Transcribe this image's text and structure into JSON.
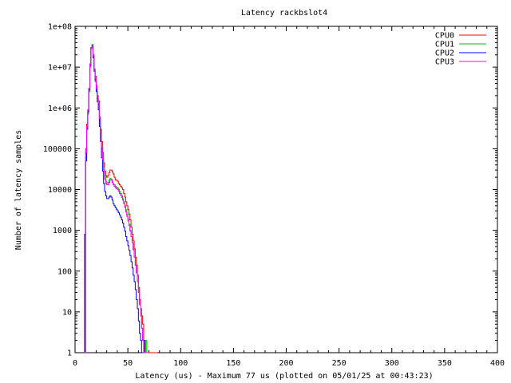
{
  "chart_data": {
    "type": "line",
    "title": "Latency rackbslot4",
    "xlabel": "Latency (us) - Maximum 77 us (plotted on 05/01/25 at 00:43:23)",
    "ylabel": "Number of latency samples",
    "xlim": [
      0,
      400
    ],
    "ylim": [
      1,
      100000000
    ],
    "yscale": "log",
    "x_ticks": [
      0,
      50,
      100,
      150,
      200,
      250,
      300,
      350,
      400
    ],
    "y_ticks": [
      1,
      10,
      100,
      1000,
      10000,
      100000,
      1000000,
      10000000,
      100000000
    ],
    "x_tick_labels": [
      "0",
      "50",
      "100",
      "150",
      "200",
      "250",
      "300",
      "350",
      "400"
    ],
    "y_tick_labels": [
      "1",
      "10",
      "100",
      "1000",
      "10000",
      "100000",
      "1e+06",
      "1e+07",
      "1e+08"
    ],
    "grid": false,
    "legend_position": "top-right",
    "series": [
      {
        "name": "CPU0",
        "color": "#ff0000",
        "points": [
          [
            9,
            1
          ],
          [
            10,
            100000
          ],
          [
            11,
            400000
          ],
          [
            12,
            900000
          ],
          [
            13,
            3000000
          ],
          [
            14,
            12000000
          ],
          [
            15,
            30000000
          ],
          [
            16,
            32000000
          ],
          [
            17,
            20000000
          ],
          [
            18,
            9000000
          ],
          [
            19,
            6000000
          ],
          [
            20,
            3500000
          ],
          [
            21,
            2000000
          ],
          [
            22,
            1500000
          ],
          [
            23,
            600000
          ],
          [
            24,
            300000
          ],
          [
            25,
            150000
          ],
          [
            26,
            80000
          ],
          [
            27,
            45000
          ],
          [
            28,
            28000
          ],
          [
            29,
            22000
          ],
          [
            30,
            20000
          ],
          [
            31,
            22000
          ],
          [
            32,
            26000
          ],
          [
            33,
            30000
          ],
          [
            34,
            30000
          ],
          [
            35,
            27000
          ],
          [
            36,
            24000
          ],
          [
            37,
            20000
          ],
          [
            38,
            17000
          ],
          [
            39,
            17000
          ],
          [
            40,
            16000
          ],
          [
            41,
            14000
          ],
          [
            42,
            13000
          ],
          [
            43,
            12000
          ],
          [
            44,
            11000
          ],
          [
            45,
            10000
          ],
          [
            46,
            8000
          ],
          [
            47,
            6500
          ],
          [
            48,
            5000
          ],
          [
            49,
            4000
          ],
          [
            50,
            3200
          ],
          [
            51,
            2500
          ],
          [
            52,
            1800
          ],
          [
            53,
            1200
          ],
          [
            54,
            800
          ],
          [
            55,
            550
          ],
          [
            56,
            350
          ],
          [
            57,
            220
          ],
          [
            58,
            140
          ],
          [
            59,
            80
          ],
          [
            60,
            40
          ],
          [
            61,
            20
          ],
          [
            62,
            12
          ],
          [
            63,
            8
          ],
          [
            64,
            5
          ],
          [
            65,
            2
          ],
          [
            66,
            1
          ],
          [
            67,
            1
          ],
          [
            70,
            1
          ],
          [
            77,
            1
          ]
        ]
      },
      {
        "name": "CPU1",
        "color": "#00c000",
        "points": [
          [
            9,
            1
          ],
          [
            10,
            60000
          ],
          [
            11,
            300000
          ],
          [
            12,
            700000
          ],
          [
            13,
            2500000
          ],
          [
            14,
            10000000
          ],
          [
            15,
            28000000
          ],
          [
            16,
            36000000
          ],
          [
            17,
            18000000
          ],
          [
            18,
            8000000
          ],
          [
            19,
            5000000
          ],
          [
            20,
            3000000
          ],
          [
            21,
            1700000
          ],
          [
            22,
            1200000
          ],
          [
            23,
            500000
          ],
          [
            24,
            250000
          ],
          [
            25,
            120000
          ],
          [
            26,
            60000
          ],
          [
            27,
            35000
          ],
          [
            28,
            22000
          ],
          [
            29,
            16000
          ],
          [
            30,
            14000
          ],
          [
            31,
            15000
          ],
          [
            32,
            17000
          ],
          [
            33,
            19000
          ],
          [
            34,
            18000
          ],
          [
            35,
            16000
          ],
          [
            36,
            14000
          ],
          [
            37,
            13000
          ],
          [
            38,
            12000
          ],
          [
            39,
            11500
          ],
          [
            40,
            11000
          ],
          [
            41,
            10000
          ],
          [
            42,
            9000
          ],
          [
            43,
            8000
          ],
          [
            44,
            7000
          ],
          [
            45,
            6000
          ],
          [
            46,
            5000
          ],
          [
            47,
            4000
          ],
          [
            48,
            3200
          ],
          [
            49,
            2500
          ],
          [
            50,
            1900
          ],
          [
            51,
            1400
          ],
          [
            52,
            1000
          ],
          [
            53,
            700
          ],
          [
            54,
            500
          ],
          [
            55,
            330
          ],
          [
            56,
            220
          ],
          [
            57,
            140
          ],
          [
            58,
            90
          ],
          [
            59,
            55
          ],
          [
            60,
            30
          ],
          [
            61,
            15
          ],
          [
            62,
            8
          ],
          [
            63,
            4
          ],
          [
            64,
            2
          ],
          [
            65,
            2
          ],
          [
            66,
            1
          ],
          [
            67,
            2
          ],
          [
            68,
            1
          ]
        ]
      },
      {
        "name": "CPU2",
        "color": "#0000ff",
        "points": [
          [
            9,
            800
          ],
          [
            10,
            50000
          ],
          [
            11,
            300000
          ],
          [
            12,
            800000
          ],
          [
            13,
            2800000
          ],
          [
            14,
            11000000
          ],
          [
            15,
            30000000
          ],
          [
            16,
            33000000
          ],
          [
            17,
            17000000
          ],
          [
            18,
            8000000
          ],
          [
            19,
            4500000
          ],
          [
            20,
            2500000
          ],
          [
            21,
            1400000
          ],
          [
            22,
            900000
          ],
          [
            23,
            350000
          ],
          [
            24,
            150000
          ],
          [
            25,
            60000
          ],
          [
            26,
            28000
          ],
          [
            27,
            14000
          ],
          [
            28,
            9000
          ],
          [
            29,
            7000
          ],
          [
            30,
            6000
          ],
          [
            31,
            6000
          ],
          [
            32,
            6500
          ],
          [
            33,
            7000
          ],
          [
            34,
            6500
          ],
          [
            35,
            5500
          ],
          [
            36,
            4500
          ],
          [
            37,
            4000
          ],
          [
            38,
            3600
          ],
          [
            39,
            3300
          ],
          [
            40,
            3000
          ],
          [
            41,
            2700
          ],
          [
            42,
            2400
          ],
          [
            43,
            2100
          ],
          [
            44,
            1800
          ],
          [
            45,
            1500
          ],
          [
            46,
            1200
          ],
          [
            47,
            950
          ],
          [
            48,
            700
          ],
          [
            49,
            550
          ],
          [
            50,
            420
          ],
          [
            51,
            320
          ],
          [
            52,
            240
          ],
          [
            53,
            170
          ],
          [
            54,
            120
          ],
          [
            55,
            80
          ],
          [
            56,
            55
          ],
          [
            57,
            35
          ],
          [
            58,
            20
          ],
          [
            59,
            12
          ],
          [
            60,
            6
          ],
          [
            61,
            3
          ],
          [
            62,
            2
          ],
          [
            63,
            1
          ],
          [
            65,
            2
          ],
          [
            66,
            1
          ],
          [
            67,
            1
          ]
        ]
      },
      {
        "name": "CPU3",
        "color": "#ff00ff",
        "points": [
          [
            9,
            1
          ],
          [
            10,
            80000
          ],
          [
            11,
            350000
          ],
          [
            12,
            900000
          ],
          [
            13,
            3000000
          ],
          [
            14,
            12000000
          ],
          [
            15,
            30000000
          ],
          [
            16,
            32000000
          ],
          [
            17,
            19000000
          ],
          [
            18,
            8500000
          ],
          [
            19,
            5500000
          ],
          [
            20,
            3000000
          ],
          [
            21,
            1800000
          ],
          [
            22,
            1300000
          ],
          [
            23,
            550000
          ],
          [
            24,
            250000
          ],
          [
            25,
            110000
          ],
          [
            26,
            55000
          ],
          [
            27,
            30000
          ],
          [
            28,
            18000
          ],
          [
            29,
            14000
          ],
          [
            30,
            13000
          ],
          [
            31,
            13000
          ],
          [
            32,
            15000
          ],
          [
            33,
            17000
          ],
          [
            34,
            17000
          ],
          [
            35,
            15000
          ],
          [
            36,
            13000
          ],
          [
            37,
            12000
          ],
          [
            38,
            11000
          ],
          [
            39,
            10500
          ],
          [
            40,
            10000
          ],
          [
            41,
            9000
          ],
          [
            42,
            8000
          ],
          [
            43,
            7200
          ],
          [
            44,
            6400
          ],
          [
            45,
            5500
          ],
          [
            46,
            4500
          ],
          [
            47,
            3600
          ],
          [
            48,
            2800
          ],
          [
            49,
            2200
          ],
          [
            50,
            1700
          ],
          [
            51,
            1300
          ],
          [
            52,
            950
          ],
          [
            53,
            700
          ],
          [
            54,
            500
          ],
          [
            55,
            340
          ],
          [
            56,
            220
          ],
          [
            57,
            140
          ],
          [
            58,
            90
          ],
          [
            59,
            55
          ],
          [
            60,
            30
          ],
          [
            61,
            15
          ],
          [
            62,
            8
          ],
          [
            63,
            4
          ],
          [
            64,
            2
          ],
          [
            65,
            1
          ],
          [
            66,
            1
          ],
          [
            68,
            1
          ]
        ]
      }
    ]
  }
}
